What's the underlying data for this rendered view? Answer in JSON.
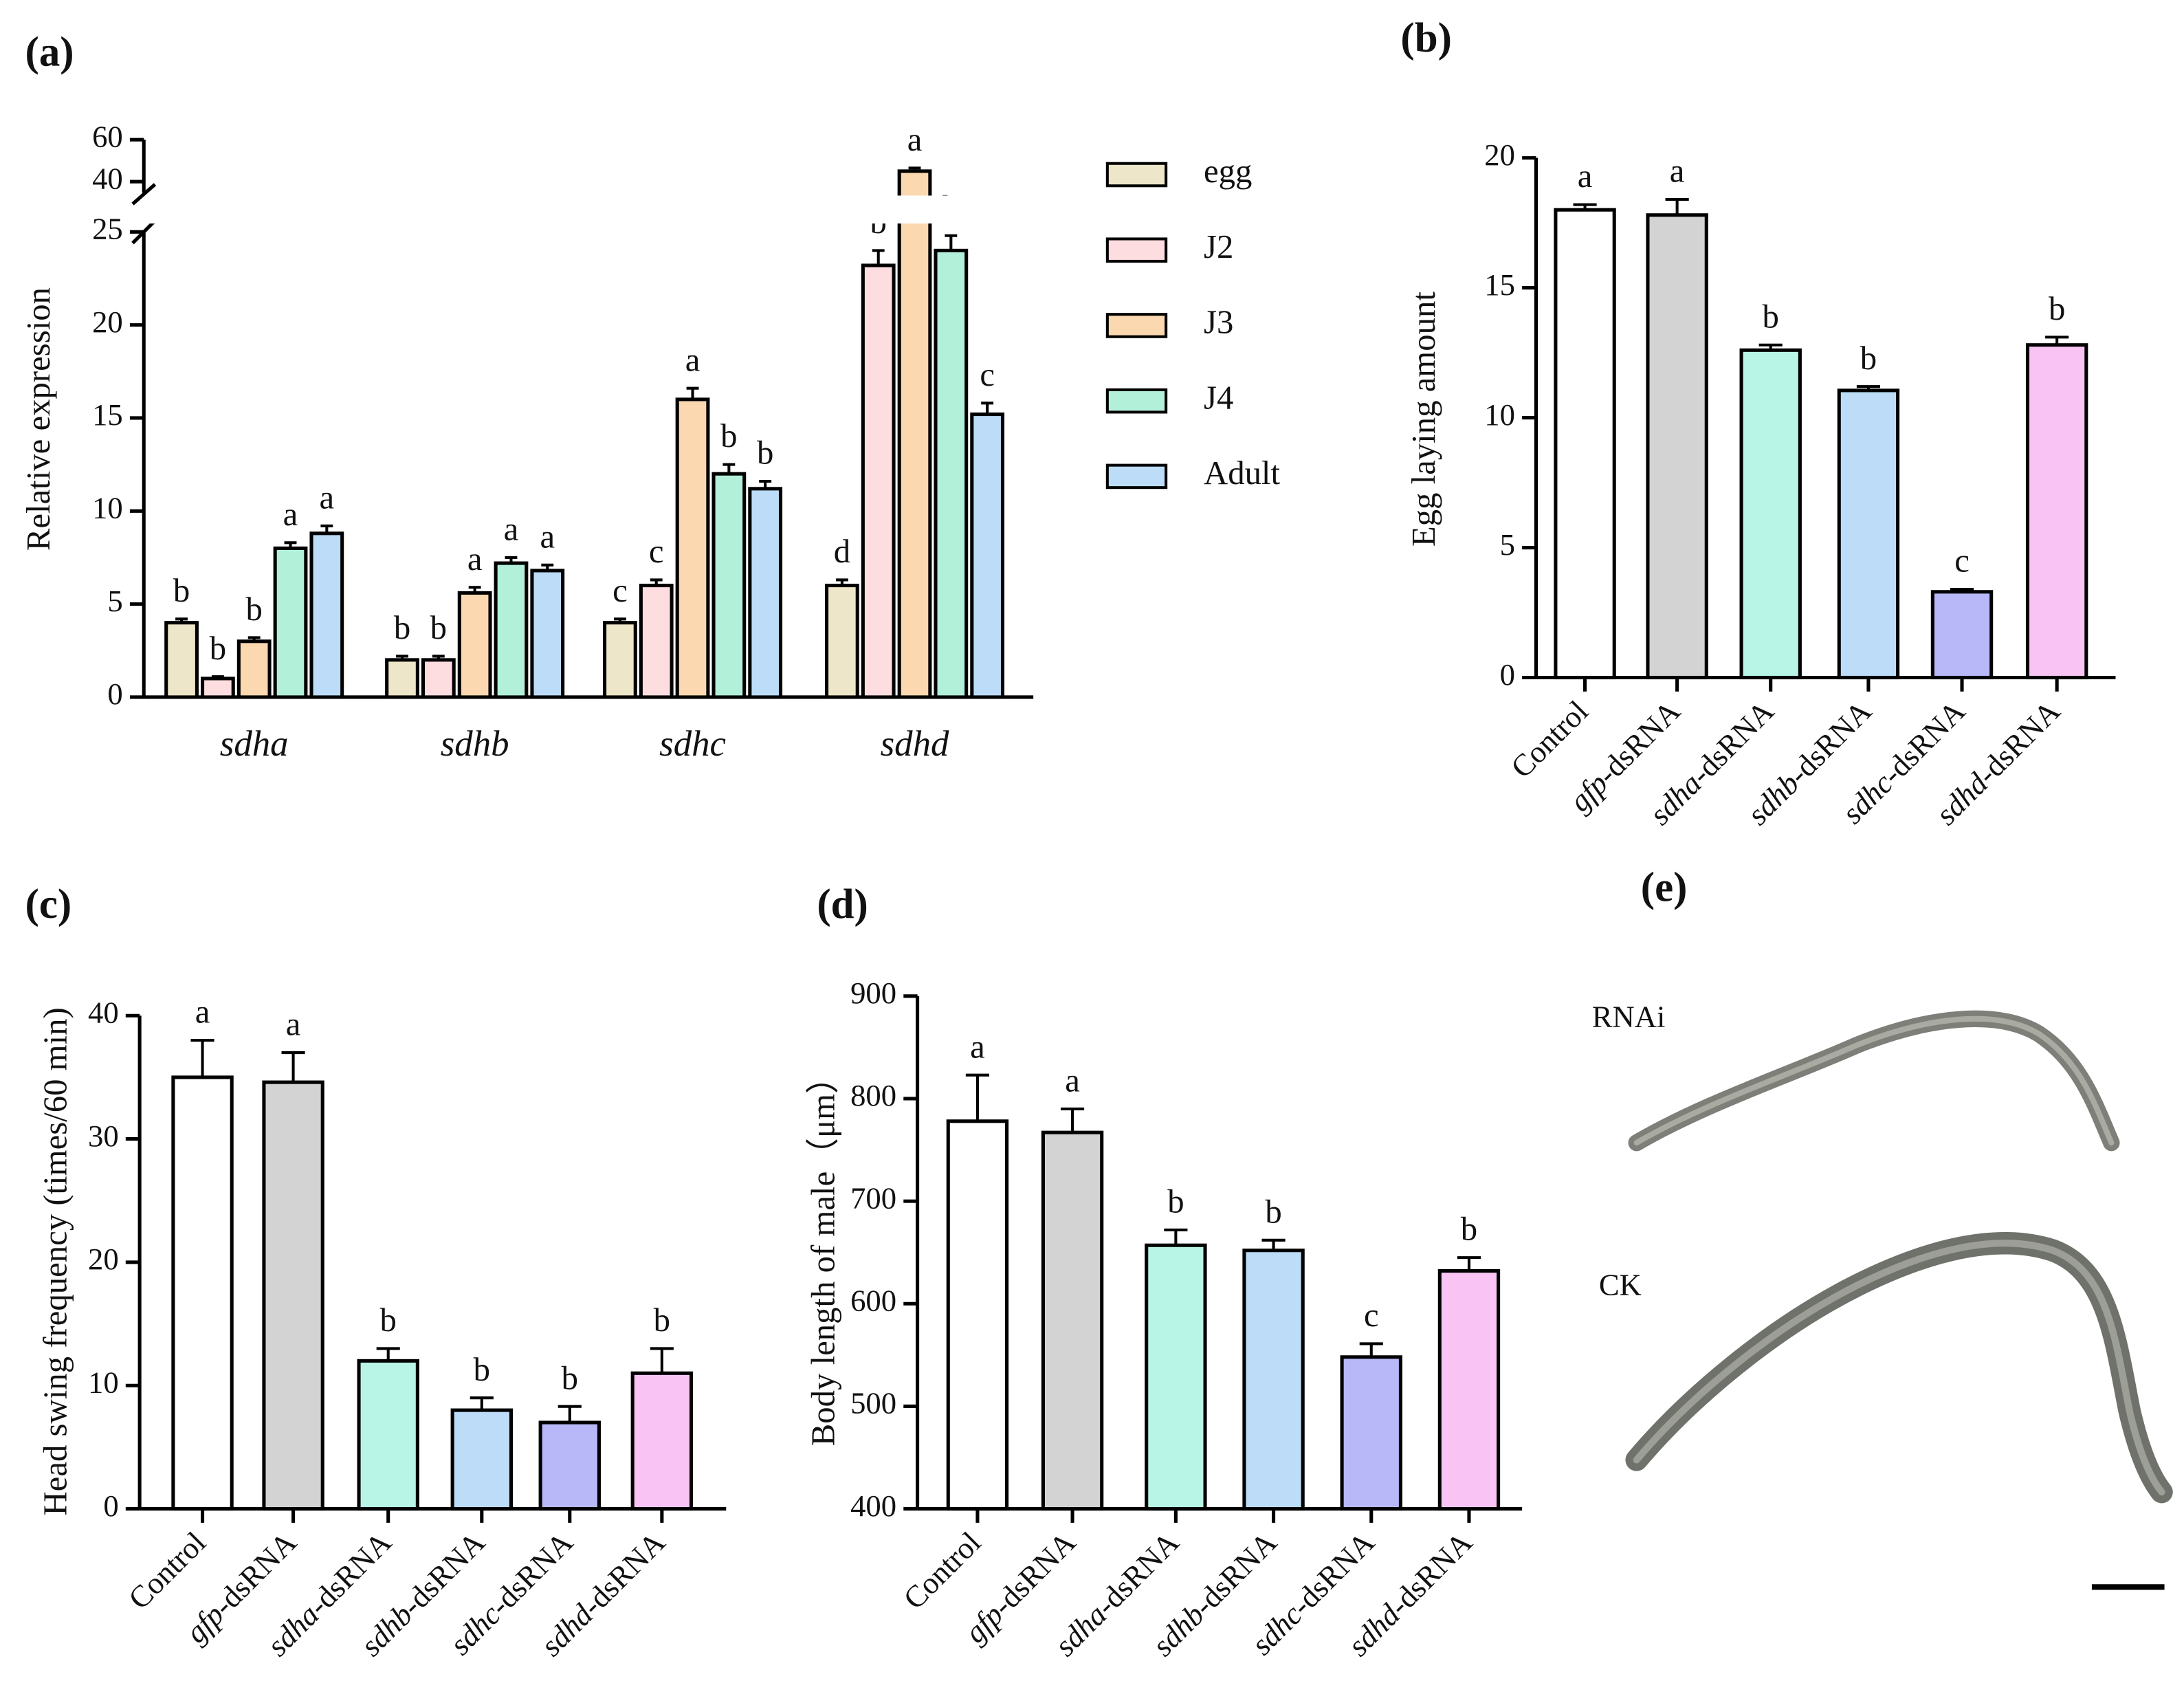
{
  "chart_data": [
    {
      "type": "grouped-bar",
      "panel_label": "(a)",
      "y_label": "Relative expression",
      "categories": [
        "sdha",
        "sdhb",
        "sdhc",
        "sdhd"
      ],
      "series": [
        {
          "name": "egg",
          "color": "#ede6c8",
          "values": [
            4.0,
            2.0,
            4.0,
            6.0
          ],
          "errors": [
            0.2,
            0.2,
            0.2,
            0.3
          ],
          "letters": [
            "b",
            "b",
            "c",
            "d"
          ]
        },
        {
          "name": "J2",
          "color": "#fddde0",
          "values": [
            1.0,
            2.0,
            6.0,
            23.2
          ],
          "errors": [
            0.1,
            0.2,
            0.3,
            0.8
          ],
          "letters": [
            "b",
            "b",
            "c",
            "b"
          ]
        },
        {
          "name": "J3",
          "color": "#fbd8b0",
          "values": [
            3.0,
            5.6,
            16.0,
            45
          ],
          "errors": [
            0.2,
            0.3,
            0.6,
            1.5
          ],
          "letters": [
            "b",
            "a",
            "a",
            "a"
          ]
        },
        {
          "name": "J4",
          "color": "#b2f0da",
          "values": [
            8.0,
            7.2,
            12.0,
            24.0
          ],
          "errors": [
            0.3,
            0.3,
            0.5,
            0.8
          ],
          "letters": [
            "a",
            "a",
            "b",
            "b"
          ]
        },
        {
          "name": "Adult",
          "color": "#bcdcf7",
          "values": [
            8.8,
            6.8,
            11.2,
            15.2
          ],
          "errors": [
            0.4,
            0.3,
            0.4,
            0.6
          ],
          "letters": [
            "a",
            "a",
            "b",
            "c"
          ]
        }
      ],
      "ylim": [
        0,
        60
      ],
      "ybreak": [
        25,
        40
      ],
      "yticks": [
        0,
        5,
        10,
        15,
        20,
        25,
        40,
        60
      ],
      "grid": false
    },
    {
      "type": "bar",
      "panel_label": "(b)",
      "y_label": "Egg laying amount",
      "categories": [
        "Control",
        "gfp-dsRNA",
        "sdha-dsRNA",
        "sdhb-dsRNA",
        "sdhc-dsRNA",
        "sdhd-dsRNA"
      ],
      "colors": [
        "#ffffff",
        "#d3d3d3",
        "#b8f5e6",
        "#bcdcf7",
        "#b8b8f8",
        "#f9c4f4"
      ],
      "values": [
        18.0,
        17.8,
        12.6,
        11.05,
        3.3,
        12.8
      ],
      "errors": [
        0.2,
        0.6,
        0.2,
        0.15,
        0.1,
        0.3
      ],
      "letters": [
        "a",
        "a",
        "b",
        "b",
        "c",
        "b"
      ],
      "ylim": [
        0,
        20
      ],
      "yticks": [
        0,
        5,
        10,
        15,
        20
      ],
      "grid": false
    },
    {
      "type": "bar",
      "panel_label": "(c)",
      "y_label": "Head swing frequency (times/60 min)",
      "categories": [
        "Control",
        "gfp-dsRNA",
        "sdha-dsRNA",
        "sdhb-dsRNA",
        "sdhc-dsRNA",
        "sdhd-dsRNA"
      ],
      "colors": [
        "#ffffff",
        "#d3d3d3",
        "#b8f5e6",
        "#bcdcf7",
        "#b8b8f8",
        "#f9c4f4"
      ],
      "values": [
        35,
        34.6,
        12,
        8,
        7,
        11
      ],
      "errors": [
        3,
        2.4,
        1,
        1,
        1.3,
        2
      ],
      "letters": [
        "a",
        "a",
        "b",
        "b",
        "b",
        "b"
      ],
      "ylim": [
        0,
        40
      ],
      "yticks": [
        0,
        10,
        20,
        30,
        40
      ],
      "grid": false
    },
    {
      "type": "bar",
      "panel_label": "(d)",
      "y_label": "Body length of male（μm）",
      "categories": [
        "Control",
        "gfp-dsRNA",
        "sdha-dsRNA",
        "sdhb-dsRNA",
        "sdhc-dsRNA",
        "sdhd-dsRNA"
      ],
      "colors": [
        "#ffffff",
        "#d3d3d3",
        "#b8f5e6",
        "#bcdcf7",
        "#b8b8f8",
        "#f9c4f4"
      ],
      "values": [
        778,
        767,
        657,
        652,
        548,
        632
      ],
      "errors": [
        45,
        23,
        15,
        10,
        13,
        13
      ],
      "letters": [
        "a",
        "a",
        "b",
        "b",
        "c",
        "b"
      ],
      "ylim": [
        400,
        900
      ],
      "yticks": [
        400,
        500,
        600,
        700,
        800,
        900
      ],
      "grid": false
    }
  ],
  "image_panel": {
    "panel_label": "(e)",
    "labels": [
      "RNAi",
      "CK"
    ]
  }
}
